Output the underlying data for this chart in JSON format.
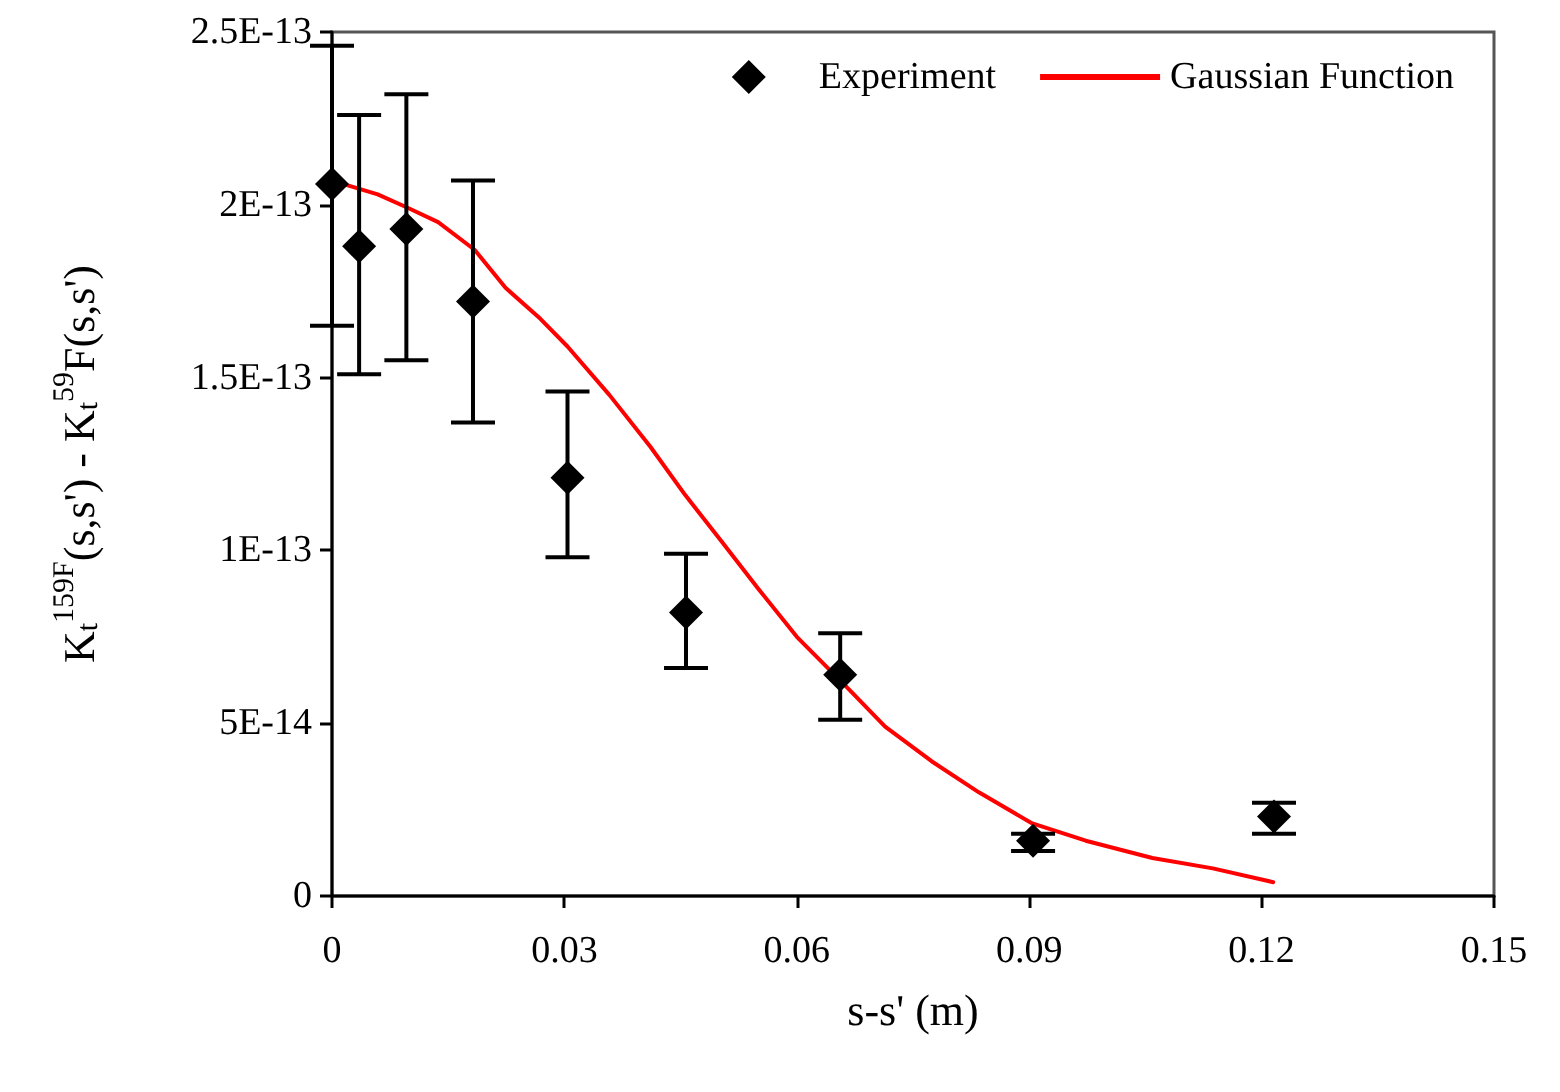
{
  "chart_data": {
    "type": "scatter",
    "xlabel": "s-s' (m)",
    "ylabel": "K$_{t}$$^{159F}$(s,s') - K$_{t}$$^{59}$F(s,s')",
    "series": [
      {
        "name": "Experiment",
        "color": "#000000",
        "marker": "diamond",
        "x": [
          0,
          0.0035,
          0.0096,
          0.0182,
          0.0304,
          0.0457,
          0.0656,
          0.0905,
          0.1216
        ],
        "values": [
          2.06e-13,
          1.88e-13,
          1.93e-13,
          1.72e-13,
          1.21e-13,
          8.2e-14,
          6.4e-14,
          1.6e-14,
          2.3e-14
        ],
        "errors": [
          [
            1.65e-13,
            2.46e-13
          ],
          [
            1.51e-13,
            2.26e-13
          ],
          [
            1.55e-13,
            2.32e-13
          ],
          [
            1.37e-13,
            2.07e-13
          ],
          [
            9.8e-14,
            1.46e-13
          ],
          [
            6.6e-14,
            9.9e-14
          ],
          [
            5.1e-14,
            7.6e-14
          ],
          [
            1.3e-14,
            1.8e-14
          ],
          [
            1.8e-14,
            2.7e-14
          ]
        ]
      },
      {
        "name": "Gaussian Function",
        "type": "line",
        "color": "#ff0000",
        "marker": "none",
        "line_style": "solid",
        "x": [
          0.0015,
          0.0059,
          0.0099,
          0.0137,
          0.0184,
          0.0224,
          0.0269,
          0.0304,
          0.0358,
          0.0411,
          0.0456,
          0.0505,
          0.055,
          0.06,
          0.0662,
          0.0714,
          0.0774,
          0.0835,
          0.0904,
          0.0973,
          0.1059,
          0.1137,
          0.1215
        ],
        "values": [
          2.06e-13,
          2.03e-13,
          1.99e-13,
          1.95e-13,
          1.87e-13,
          1.76e-13,
          1.67e-13,
          1.59e-13,
          1.45e-13,
          1.3e-13,
          1.16e-13,
          1.02e-13,
          8.9e-14,
          7.5e-14,
          6.1e-14,
          4.9e-14,
          3.9e-14,
          3e-14,
          2.1e-14,
          1.6e-14,
          1.1e-14,
          8e-15,
          4e-15
        ]
      }
    ],
    "xlim": [
      0,
      0.15
    ],
    "xticks": [
      0,
      0.03,
      0.06,
      0.09,
      0.12,
      0.15
    ],
    "ylim": [
      0,
      2.5e-13
    ],
    "yticks": [
      {
        "value": 0,
        "label": "0"
      },
      {
        "value": 5e-14,
        "label": "5E-14"
      },
      {
        "value": 1e-13,
        "label": "1E-13"
      },
      {
        "value": 1.5e-13,
        "label": "1.5E-13"
      },
      {
        "value": 2e-13,
        "label": "2E-13"
      },
      {
        "value": 2.5e-13,
        "label": "2.5E-13"
      }
    ],
    "grid": false,
    "legend": "top right"
  }
}
